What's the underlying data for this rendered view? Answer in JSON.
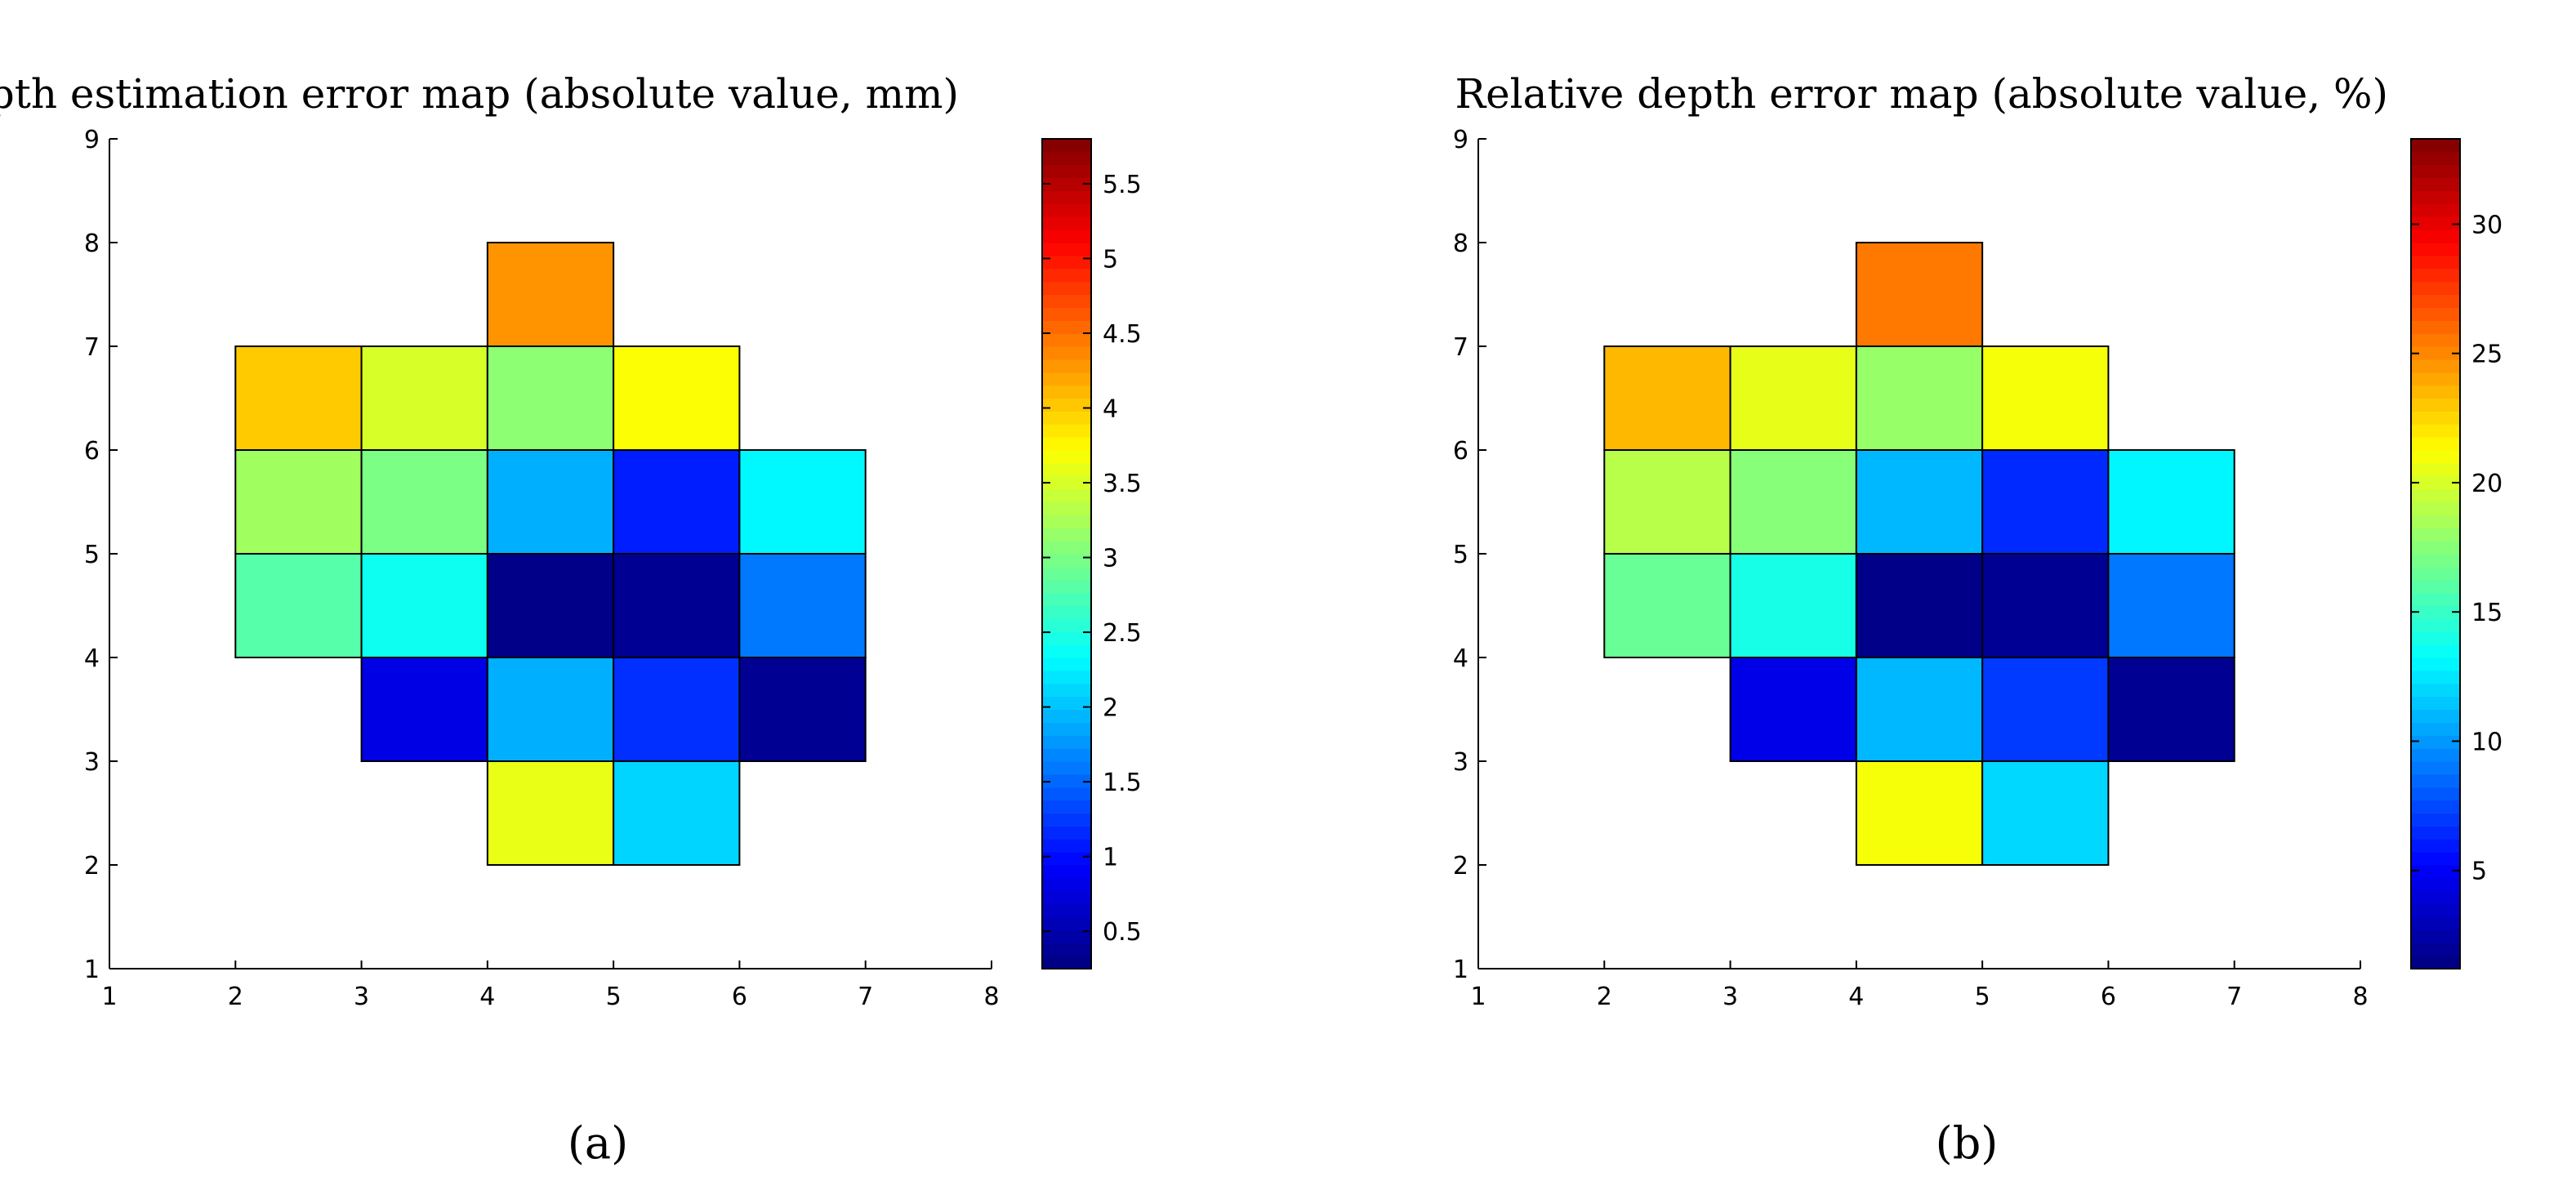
{
  "chart_data": [
    {
      "type": "heatmap",
      "title": "Depth estimation error map (absolute value, mm)",
      "caption": "(a)",
      "xlim": [
        1,
        8
      ],
      "ylim": [
        1,
        9
      ],
      "x_ticks": [
        "1",
        "2",
        "3",
        "4",
        "5",
        "6",
        "7",
        "8"
      ],
      "y_ticks": [
        "1",
        "2",
        "3",
        "4",
        "5",
        "6",
        "7",
        "8",
        "9"
      ],
      "colorbar": {
        "min": 0.25,
        "max": 5.8,
        "ticks": [
          0.5,
          1,
          1.5,
          2,
          2.5,
          3,
          3.5,
          4,
          4.5,
          5,
          5.5
        ],
        "tick_labels": [
          "0.5",
          "1",
          "1.5",
          "2",
          "2.5",
          "3",
          "3.5",
          "4",
          "4.5",
          "5",
          "5.5"
        ]
      },
      "cells": [
        {
          "x": 4,
          "y": 7,
          "value": 4.3
        },
        {
          "x": 2,
          "y": 6,
          "value": 4.0
        },
        {
          "x": 3,
          "y": 6,
          "value": 3.5
        },
        {
          "x": 4,
          "y": 6,
          "value": 3.1
        },
        {
          "x": 5,
          "y": 6,
          "value": 3.7
        },
        {
          "x": 2,
          "y": 5,
          "value": 3.2
        },
        {
          "x": 3,
          "y": 5,
          "value": 3.0
        },
        {
          "x": 4,
          "y": 5,
          "value": 1.9
        },
        {
          "x": 5,
          "y": 5,
          "value": 1.1
        },
        {
          "x": 6,
          "y": 5,
          "value": 2.3
        },
        {
          "x": 2,
          "y": 4,
          "value": 2.8
        },
        {
          "x": 3,
          "y": 4,
          "value": 2.4
        },
        {
          "x": 4,
          "y": 4,
          "value": 0.3
        },
        {
          "x": 5,
          "y": 4,
          "value": 0.35
        },
        {
          "x": 6,
          "y": 4,
          "value": 1.6
        },
        {
          "x": 3,
          "y": 3,
          "value": 0.8
        },
        {
          "x": 4,
          "y": 3,
          "value": 1.9
        },
        {
          "x": 5,
          "y": 3,
          "value": 1.2
        },
        {
          "x": 6,
          "y": 3,
          "value": 0.35
        },
        {
          "x": 4,
          "y": 2,
          "value": 3.6
        },
        {
          "x": 5,
          "y": 2,
          "value": 2.1
        }
      ]
    },
    {
      "type": "heatmap",
      "title": "Relative depth error map (absolute value, %)",
      "caption": "(b)",
      "xlim": [
        1,
        8
      ],
      "ylim": [
        1,
        9
      ],
      "x_ticks": [
        "1",
        "2",
        "3",
        "4",
        "5",
        "6",
        "7",
        "8"
      ],
      "y_ticks": [
        "1",
        "2",
        "3",
        "4",
        "5",
        "6",
        "7",
        "8",
        "9"
      ],
      "colorbar": {
        "min": 1.2,
        "max": 33.3,
        "ticks": [
          5,
          10,
          15,
          20,
          25,
          30
        ],
        "tick_labels": [
          "5",
          "10",
          "15",
          "20",
          "25",
          "30"
        ]
      },
      "cells": [
        {
          "x": 4,
          "y": 7,
          "value": 25.5
        },
        {
          "x": 2,
          "y": 6,
          "value": 23.5
        },
        {
          "x": 3,
          "y": 6,
          "value": 20.5
        },
        {
          "x": 4,
          "y": 6,
          "value": 18.0
        },
        {
          "x": 5,
          "y": 6,
          "value": 21.0
        },
        {
          "x": 2,
          "y": 5,
          "value": 19.0
        },
        {
          "x": 3,
          "y": 5,
          "value": 17.5
        },
        {
          "x": 4,
          "y": 5,
          "value": 11.0
        },
        {
          "x": 5,
          "y": 5,
          "value": 6.5
        },
        {
          "x": 6,
          "y": 5,
          "value": 13.0
        },
        {
          "x": 2,
          "y": 4,
          "value": 16.5
        },
        {
          "x": 3,
          "y": 4,
          "value": 14.0
        },
        {
          "x": 4,
          "y": 4,
          "value": 1.5
        },
        {
          "x": 5,
          "y": 4,
          "value": 1.8
        },
        {
          "x": 6,
          "y": 4,
          "value": 9.0
        },
        {
          "x": 3,
          "y": 3,
          "value": 4.5
        },
        {
          "x": 4,
          "y": 3,
          "value": 11.0
        },
        {
          "x": 5,
          "y": 3,
          "value": 7.0
        },
        {
          "x": 6,
          "y": 3,
          "value": 1.8
        },
        {
          "x": 4,
          "y": 2,
          "value": 21.0
        },
        {
          "x": 5,
          "y": 2,
          "value": 12.0
        }
      ]
    }
  ]
}
